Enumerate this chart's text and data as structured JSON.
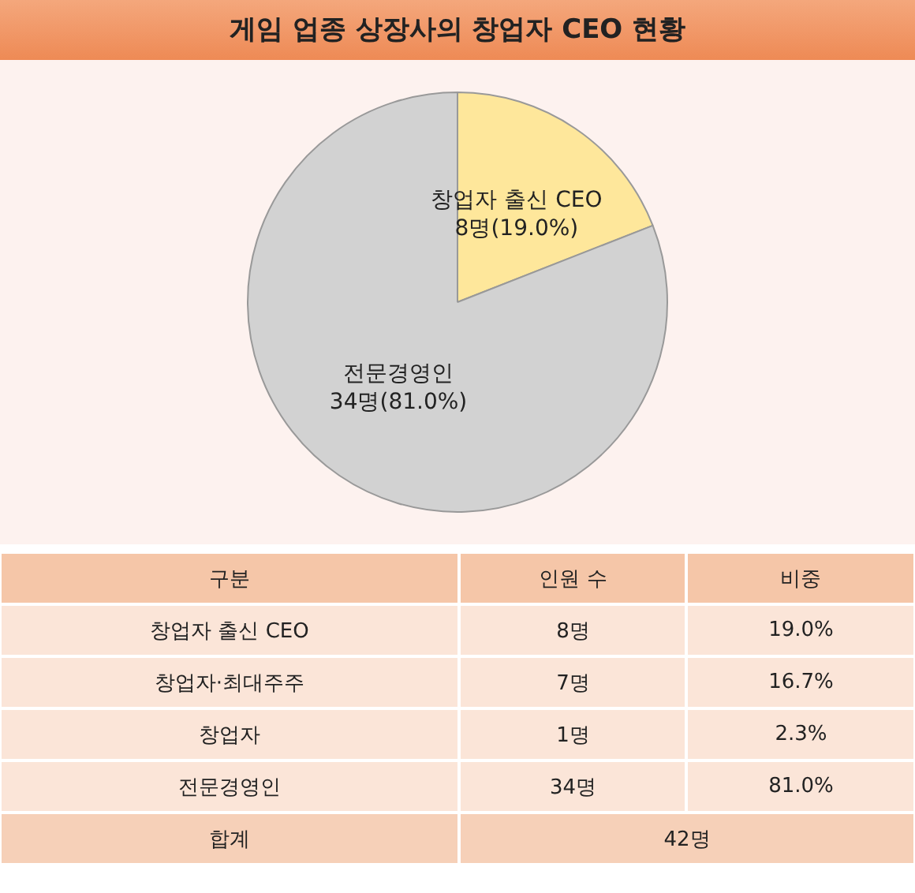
{
  "chart_data": {
    "type": "pie",
    "title": "게임 업종 상장사의 창업자 CEO 현황",
    "categories": [
      "창업자 출신 CEO",
      "전문경영인"
    ],
    "values": [
      8,
      34
    ],
    "colors": [
      "#fee79b",
      "#d2d2d2"
    ],
    "value_labels": [
      "8명(19.0%)",
      "34명(81.0%)"
    ],
    "legend": false,
    "annotations": [
      "구분",
      "인원 수",
      "비중",
      "창업자 출신 CEO",
      "8명",
      "19.0%",
      "창업자·최대주주",
      "7명",
      "16.7%",
      "창업자",
      "1명",
      "2.3%",
      "전문경영인",
      "34명",
      "81.0%",
      "합계",
      "42명"
    ]
  }
}
